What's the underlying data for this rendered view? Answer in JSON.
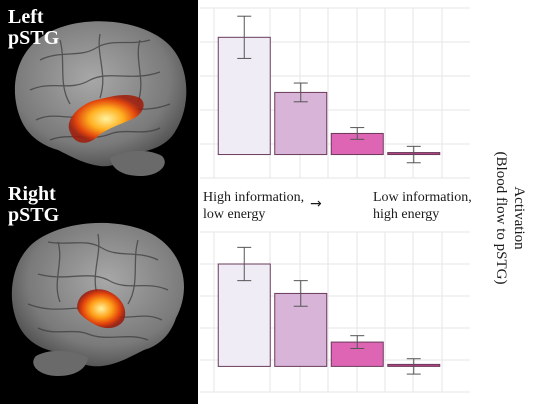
{
  "brain_panels": [
    {
      "label_line1": "Left",
      "label_line2": "pSTG"
    },
    {
      "label_line1": "Right",
      "label_line2": "pSTG"
    }
  ],
  "annotations": {
    "left_line1": "High information,",
    "left_line2": "low energy",
    "arrow": "→",
    "right_line1": "Low information,",
    "right_line2": "high energy"
  },
  "axis": {
    "ylabel_line1": "Activation",
    "ylabel_line2": "(Blood flow to pSTG)"
  },
  "colors": {
    "bar_fill": [
      "#f0ecf6",
      "#d8b4d8",
      "#de64b4",
      "#b44484"
    ],
    "bar_stroke": "#6a3a5a",
    "grid": "#e6e6e6",
    "error_bar": "#555555"
  },
  "chart_data": [
    {
      "type": "bar",
      "panel": "Left pSTG",
      "categories": [
        "",
        "",
        "",
        ""
      ],
      "values": [
        1.0,
        0.53,
        0.18,
        0.0
      ],
      "errors": [
        0.18,
        0.08,
        0.05,
        0.07
      ],
      "ylim": [
        -0.2,
        1.25
      ],
      "grid": true
    },
    {
      "type": "bar",
      "panel": "Right pSTG",
      "categories": [
        "",
        "",
        "",
        ""
      ],
      "values": [
        0.8,
        0.57,
        0.19,
        0.0
      ],
      "errors": [
        0.13,
        0.1,
        0.05,
        0.06
      ],
      "ylim": [
        -0.2,
        1.05
      ],
      "grid": true
    }
  ]
}
